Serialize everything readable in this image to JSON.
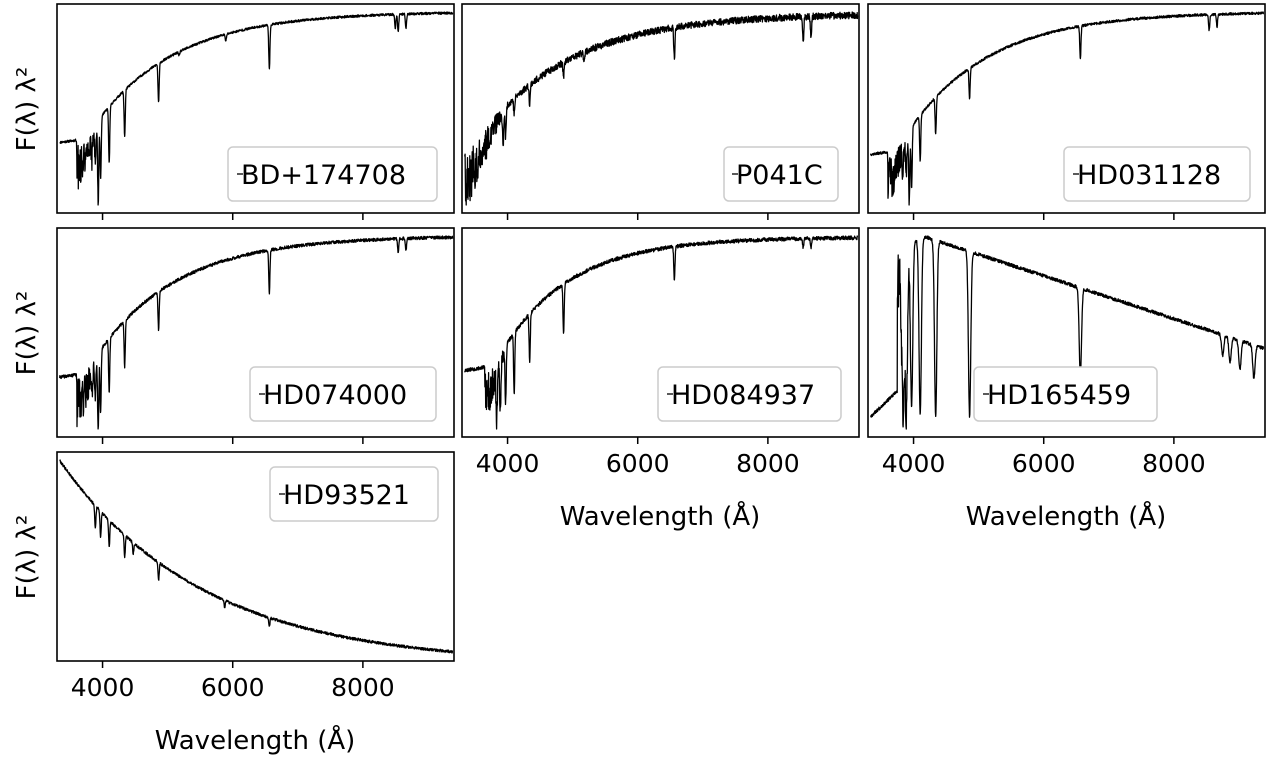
{
  "figure": {
    "ylabel": "F(λ) λ²",
    "xlabel": "Wavelength (Å)",
    "xticks": [
      4000,
      6000,
      8000
    ],
    "line_color": "#000000",
    "legend_border": "#cccccc"
  },
  "chart_data": [
    {
      "type": "line",
      "series": [
        {
          "name": "BD+174708"
        }
      ],
      "xlim": [
        3300,
        9400
      ],
      "yrange": [
        0,
        1
      ],
      "shape": {
        "kind": "cool",
        "edge": 3600,
        "riseScale": 2000,
        "start": 0.05,
        "turnover": 3700,
        "plateau": 0.98,
        "lines": [
          [
            3835,
            0.15
          ],
          [
            3889,
            0.22
          ],
          [
            3933,
            0.55
          ],
          [
            3970,
            0.42
          ],
          [
            4102,
            0.4
          ],
          [
            4340,
            0.33
          ],
          [
            4861,
            0.28
          ],
          [
            5175,
            0.03
          ],
          [
            5893,
            0.05
          ],
          [
            6563,
            0.32
          ],
          [
            8498,
            0.1
          ],
          [
            8542,
            0.12
          ],
          [
            8662,
            0.1
          ]
        ],
        "noise": 0.008,
        "seed": 11
      }
    },
    {
      "type": "line",
      "series": [
        {
          "name": "P041C"
        }
      ],
      "xlim": [
        3300,
        9400
      ],
      "yrange": [
        0,
        1
      ],
      "shape": {
        "kind": "cool",
        "edge": 3350,
        "riseScale": 2200,
        "start": 0.06,
        "turnover": 3400,
        "plateau": 0.97,
        "lines": [
          [
            3933,
            0.2
          ],
          [
            3970,
            0.18
          ],
          [
            4102,
            0.1
          ],
          [
            4340,
            0.12
          ],
          [
            4861,
            0.1
          ],
          [
            5175,
            0.05
          ],
          [
            6563,
            0.2
          ],
          [
            8542,
            0.16
          ],
          [
            8662,
            0.14
          ]
        ],
        "noise": 0.022,
        "seed": 23
      }
    },
    {
      "type": "line",
      "series": [
        {
          "name": "HD031128"
        }
      ],
      "xlim": [
        3300,
        9400
      ],
      "yrange": [
        0,
        1
      ],
      "shape": {
        "kind": "cool",
        "edge": 3600,
        "riseScale": 2000,
        "start": 0.05,
        "turnover": 3700,
        "plateau": 0.98,
        "lines": [
          [
            3835,
            0.15
          ],
          [
            3889,
            0.2
          ],
          [
            3933,
            0.45
          ],
          [
            3970,
            0.38
          ],
          [
            4102,
            0.3
          ],
          [
            4340,
            0.24
          ],
          [
            4861,
            0.2
          ],
          [
            6563,
            0.22
          ],
          [
            8542,
            0.1
          ],
          [
            8662,
            0.08
          ]
        ],
        "noise": 0.008,
        "seed": 37
      }
    },
    {
      "type": "line",
      "series": [
        {
          "name": "HD074000"
        }
      ],
      "xlim": [
        3300,
        9400
      ],
      "yrange": [
        0,
        1
      ],
      "shape": {
        "kind": "cool",
        "edge": 3600,
        "riseScale": 2000,
        "start": 0.05,
        "turnover": 3700,
        "plateau": 0.97,
        "lines": [
          [
            3835,
            0.15
          ],
          [
            3889,
            0.22
          ],
          [
            3933,
            0.48
          ],
          [
            3970,
            0.4
          ],
          [
            4102,
            0.35
          ],
          [
            4340,
            0.3
          ],
          [
            4861,
            0.25
          ],
          [
            6563,
            0.28
          ],
          [
            8542,
            0.09
          ],
          [
            8662,
            0.08
          ]
        ],
        "noise": 0.01,
        "seed": 41
      }
    },
    {
      "type": "line",
      "series": [
        {
          "name": "HD084937"
        }
      ],
      "xlim": [
        3300,
        9400
      ],
      "yrange": [
        0,
        1
      ],
      "shape": {
        "kind": "cool",
        "edge": 3650,
        "riseScale": 1700,
        "start": 0.12,
        "turnover": 3750,
        "plateau": 0.96,
        "lines": [
          [
            3835,
            0.3
          ],
          [
            3889,
            0.3
          ],
          [
            3970,
            0.35
          ],
          [
            4102,
            0.38
          ],
          [
            4340,
            0.3
          ],
          [
            4861,
            0.32
          ],
          [
            6563,
            0.22
          ],
          [
            8542,
            0.06
          ],
          [
            8662,
            0.06
          ]
        ],
        "noise": 0.012,
        "seed": 53
      }
    },
    {
      "type": "line",
      "series": [
        {
          "name": "HD165459"
        }
      ],
      "xlim": [
        3300,
        9400
      ],
      "yrange": [
        0,
        1
      ],
      "shape": {
        "kind": "astar",
        "edge": 3750,
        "start": 0.08,
        "jumpTo": 0.96,
        "endValue": 0.42,
        "lines": [
          [
            3835,
            0.7
          ],
          [
            3889,
            0.75
          ],
          [
            3970,
            0.78
          ],
          [
            4102,
            0.85
          ],
          [
            4340,
            0.86
          ],
          [
            4861,
            0.8
          ],
          [
            6563,
            0.42
          ],
          [
            8750,
            0.1
          ],
          [
            8863,
            0.12
          ],
          [
            9015,
            0.14
          ],
          [
            9229,
            0.16
          ]
        ],
        "noise": 0.008,
        "seed": 67
      }
    },
    {
      "type": "line",
      "series": [
        {
          "name": "HD93521"
        }
      ],
      "xlim": [
        3300,
        9400
      ],
      "yrange": [
        0,
        1
      ],
      "shape": {
        "kind": "hot",
        "start": 0.98,
        "end": 0.05,
        "tau": 2200,
        "lines": [
          [
            3889,
            0.1
          ],
          [
            3970,
            0.12
          ],
          [
            4102,
            0.12
          ],
          [
            4340,
            0.1
          ],
          [
            4471,
            0.05
          ],
          [
            4861,
            0.08
          ],
          [
            5876,
            0.03
          ],
          [
            6563,
            0.04
          ]
        ],
        "noise": 0.006,
        "seed": 79
      }
    }
  ]
}
